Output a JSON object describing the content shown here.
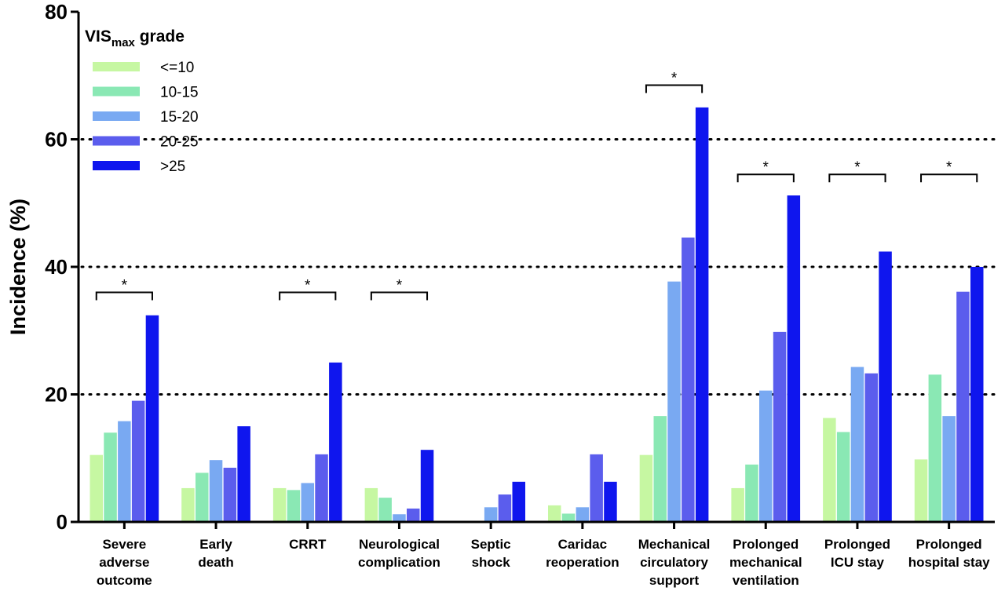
{
  "chart_data": {
    "type": "bar",
    "title": "",
    "xlabel": "",
    "ylabel": "Incidence (%)",
    "ylim": [
      0,
      80
    ],
    "yticks": [
      0,
      20,
      40,
      60,
      80
    ],
    "grid": "dotted horizontal at 20, 40, 60",
    "legend_title_main": "VIS",
    "legend_title_sub": "max",
    "legend_title_rest": " grade",
    "legend_position": "top-left",
    "categories": [
      [
        "Severe",
        "adverse",
        "outcome"
      ],
      [
        "Early",
        "death"
      ],
      [
        "CRRT"
      ],
      [
        "Neurological",
        "complication"
      ],
      [
        "Septic",
        "shock"
      ],
      [
        "Caridac",
        "reoperation"
      ],
      [
        "Mechanical",
        "circulatory",
        "support"
      ],
      [
        "Prolonged",
        "mechanical",
        "ventilation"
      ],
      [
        "Prolonged",
        "ICU stay"
      ],
      [
        "Prolonged",
        "hospital stay"
      ]
    ],
    "series": [
      {
        "name": "<=10",
        "color": "#c6f7a2",
        "values": [
          10.5,
          5.3,
          5.3,
          5.3,
          0,
          2.6,
          10.5,
          5.3,
          16.3,
          9.8
        ]
      },
      {
        "name": "10-15",
        "color": "#8ae8b4",
        "values": [
          14.0,
          7.7,
          5.0,
          3.8,
          0,
          1.3,
          16.6,
          9.0,
          14.1,
          23.1
        ]
      },
      {
        "name": "15-20",
        "color": "#79a9f2",
        "values": [
          15.8,
          9.7,
          6.1,
          1.2,
          2.3,
          2.3,
          37.7,
          20.6,
          24.3,
          16.6
        ]
      },
      {
        "name": "20-25",
        "color": "#5b5ded",
        "values": [
          19.0,
          8.5,
          10.6,
          2.1,
          4.3,
          10.6,
          44.6,
          29.8,
          23.3,
          36.1
        ]
      },
      {
        "name": ">25",
        "color": "#0f16ee",
        "values": [
          32.4,
          15.0,
          25.0,
          11.3,
          6.3,
          6.3,
          65.0,
          51.2,
          42.4,
          40.0
        ]
      }
    ],
    "significance": [
      {
        "category": 0,
        "bracket_y": 36,
        "label": "*"
      },
      {
        "category": 2,
        "bracket_y": 36,
        "label": "*"
      },
      {
        "category": 3,
        "bracket_y": 36,
        "label": "*"
      },
      {
        "category": 6,
        "bracket_y": 68.5,
        "label": "*"
      },
      {
        "category": 7,
        "bracket_y": 54.5,
        "label": "*"
      },
      {
        "category": 8,
        "bracket_y": 54.5,
        "label": "*"
      },
      {
        "category": 9,
        "bracket_y": 54.5,
        "label": "*"
      }
    ]
  }
}
